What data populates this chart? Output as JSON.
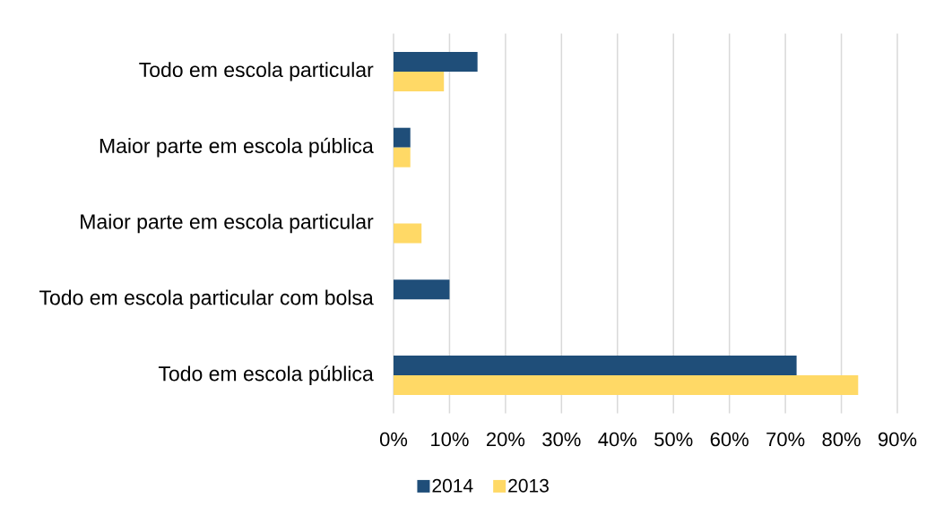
{
  "chart_data": {
    "type": "bar",
    "orientation": "horizontal",
    "categories": [
      "Todo em escola particular",
      "Maior parte em escola pública",
      "Maior parte em escola particular",
      "Todo em escola particular com bolsa",
      "Todo em escola pública"
    ],
    "series": [
      {
        "name": "2014",
        "color": "#1f4e79",
        "values": [
          15,
          3,
          null,
          10,
          72
        ]
      },
      {
        "name": "2013",
        "color": "#ffd966",
        "values": [
          9,
          3,
          5,
          null,
          83
        ]
      }
    ],
    "xlim": [
      0,
      90
    ],
    "xticks": [
      {
        "value": 0,
        "label": "0%"
      },
      {
        "value": 10,
        "label": "10%"
      },
      {
        "value": 20,
        "label": "20%"
      },
      {
        "value": 30,
        "label": "30%"
      },
      {
        "value": 40,
        "label": "40%"
      },
      {
        "value": 50,
        "label": "50%"
      },
      {
        "value": 60,
        "label": "60%"
      },
      {
        "value": 70,
        "label": "70%"
      },
      {
        "value": 80,
        "label": "80%"
      },
      {
        "value": 90,
        "label": "90%"
      }
    ],
    "grid": "x",
    "legend": "bottom"
  }
}
